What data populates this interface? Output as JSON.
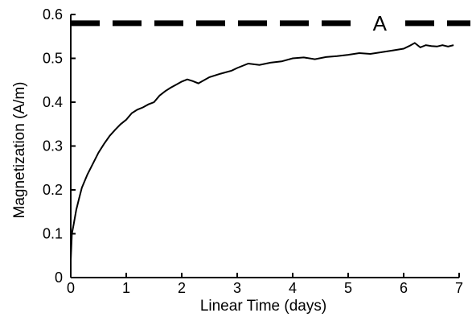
{
  "chart_data": {
    "type": "line",
    "title": "",
    "xlabel": "Linear Time (days)",
    "ylabel": "Magnetization (A/m)",
    "xlim": [
      0,
      7
    ],
    "ylim": [
      0,
      0.6
    ],
    "x_ticks": [
      "0",
      "1",
      "2",
      "3",
      "4",
      "5",
      "6",
      "7"
    ],
    "y_ticks": [
      "0",
      "0.1",
      "0.2",
      "0.3",
      "0.4",
      "0.5",
      "0.6"
    ],
    "grid": false,
    "series": [
      {
        "x": [
          0,
          0.02,
          0.05,
          0.1,
          0.15,
          0.2,
          0.3,
          0.4,
          0.5,
          0.6,
          0.7,
          0.8,
          0.9,
          1.0,
          1.1,
          1.2,
          1.3,
          1.4,
          1.5,
          1.6,
          1.7,
          1.8,
          1.9,
          2.0,
          2.1,
          2.2,
          2.3,
          2.4,
          2.5,
          2.7,
          2.9,
          3.0,
          3.2,
          3.4,
          3.6,
          3.8,
          4.0,
          4.2,
          4.4,
          4.6,
          4.8,
          5.0,
          5.2,
          5.4,
          5.6,
          5.8,
          6.0,
          6.1,
          6.2,
          6.3,
          6.4,
          6.5,
          6.6,
          6.7,
          6.8,
          6.9
        ],
        "y": [
          0.04,
          0.1,
          0.12,
          0.155,
          0.18,
          0.205,
          0.235,
          0.26,
          0.285,
          0.305,
          0.323,
          0.337,
          0.35,
          0.36,
          0.375,
          0.383,
          0.388,
          0.395,
          0.4,
          0.415,
          0.425,
          0.433,
          0.44,
          0.447,
          0.452,
          0.448,
          0.443,
          0.45,
          0.457,
          0.465,
          0.472,
          0.478,
          0.488,
          0.485,
          0.49,
          0.493,
          0.5,
          0.502,
          0.498,
          0.503,
          0.505,
          0.508,
          0.512,
          0.51,
          0.514,
          0.518,
          0.522,
          0.528,
          0.535,
          0.525,
          0.53,
          0.528,
          0.527,
          0.53,
          0.527,
          0.53
        ]
      }
    ],
    "reference_line": {
      "y": 0.58,
      "style": "dashed",
      "label": "A"
    }
  }
}
